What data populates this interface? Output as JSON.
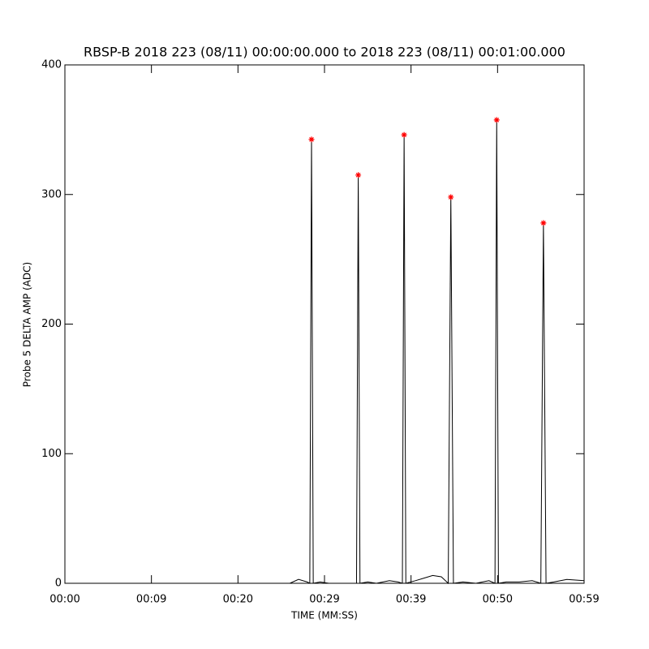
{
  "chart_data": {
    "type": "line",
    "title": "RBSP-B 2018 223 (08/11) 00:00:00.000 to 2018 223 (08/11) 00:01:00.000",
    "x_label": "TIME (MM:SS)",
    "y_label": "Probe 5 DELTA AMP (ADC)",
    "xlim": [
      0,
      60
    ],
    "xticks": [
      {
        "value": 0,
        "label": "00:00"
      },
      {
        "value": 10,
        "label": "00:09"
      },
      {
        "value": 20,
        "label": "00:20"
      },
      {
        "value": 30,
        "label": "00:29"
      },
      {
        "value": 40,
        "label": "00:39"
      },
      {
        "value": 50,
        "label": "00:50"
      },
      {
        "value": 60,
        "label": "00:59"
      }
    ],
    "ylim": [
      0,
      400
    ],
    "yticks": [
      0,
      100,
      200,
      300,
      400
    ],
    "grid": false,
    "series": [
      {
        "color": "#000000",
        "x": [
          26.0,
          27.0,
          28.0,
          28.3,
          28.5,
          28.7,
          29.5,
          30.5,
          33.7,
          33.9,
          34.1,
          35,
          36,
          37.5,
          38.5,
          39.0,
          39.2,
          39.4,
          40.5,
          41.5,
          42.5,
          43.5,
          44.3,
          44.6,
          44.9,
          46,
          47.5,
          49,
          49.7,
          49.9,
          50.1,
          51,
          52.5,
          54,
          55.0,
          55.3,
          55.6,
          56.5,
          58,
          60
        ],
        "values": [
          0,
          3,
          1,
          0,
          342.5,
          0,
          1,
          0,
          0,
          315,
          0,
          1,
          0,
          2,
          1,
          0,
          346,
          0,
          2,
          4,
          6,
          5,
          0,
          298,
          0,
          1,
          0,
          2,
          0,
          357.5,
          0,
          1,
          1,
          2,
          0,
          278,
          0,
          1,
          3,
          2
        ]
      },
      {
        "color": "#ff0000",
        "marker": "asterisk",
        "x": [
          28.5,
          33.9,
          39.2,
          44.6,
          49.9,
          55.3
        ],
        "values": [
          342.5,
          315,
          346,
          298,
          357.5,
          278
        ]
      }
    ]
  }
}
